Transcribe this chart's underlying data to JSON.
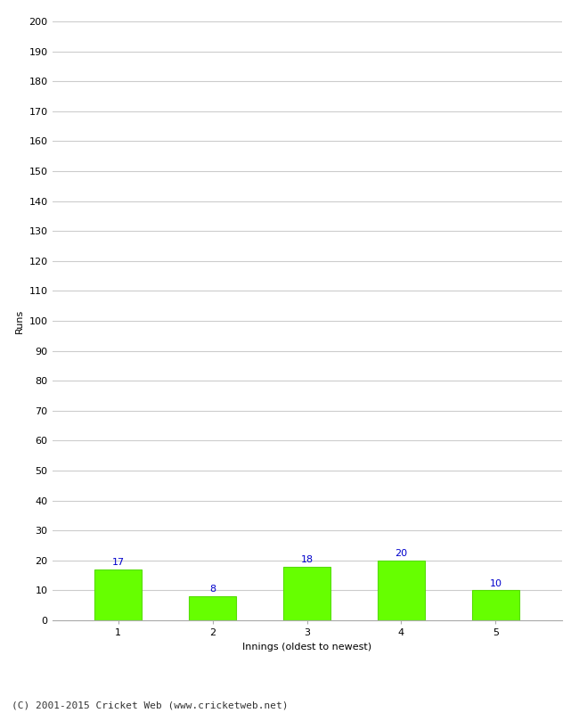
{
  "categories": [
    "1",
    "2",
    "3",
    "4",
    "5"
  ],
  "values": [
    17,
    8,
    18,
    20,
    10
  ],
  "bar_color": "#66ff00",
  "bar_edge_color": "#55dd00",
  "label_color": "#0000cc",
  "xlabel": "Innings (oldest to newest)",
  "ylabel": "Runs",
  "ylim": [
    0,
    200
  ],
  "yticks": [
    0,
    10,
    20,
    30,
    40,
    50,
    60,
    70,
    80,
    90,
    100,
    110,
    120,
    130,
    140,
    150,
    160,
    170,
    180,
    190,
    200
  ],
  "grid_color": "#cccccc",
  "bg_color": "#ffffff",
  "footer": "(C) 2001-2015 Cricket Web (www.cricketweb.net)",
  "label_fontsize": 8,
  "axis_fontsize": 8,
  "footer_fontsize": 8,
  "ylabel_fontsize": 8,
  "tick_label_fontsize": 8
}
